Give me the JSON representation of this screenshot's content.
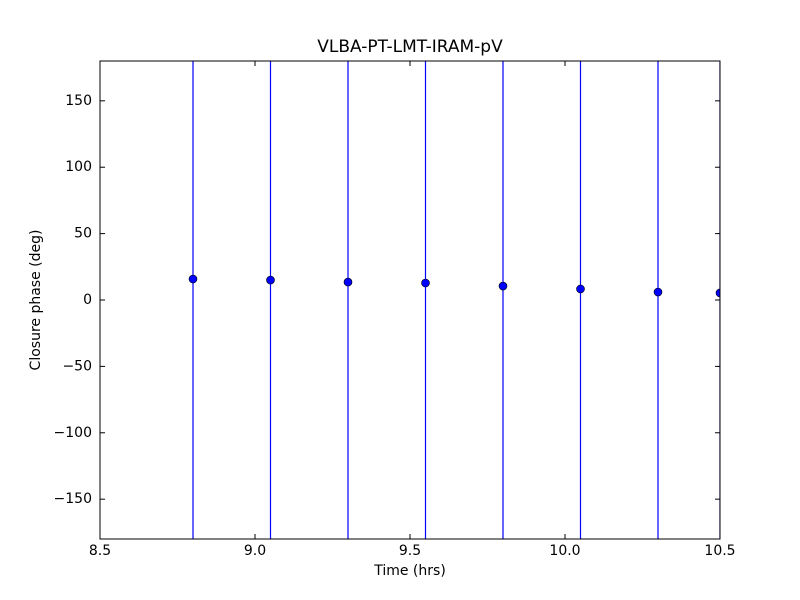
{
  "chart_data": {
    "type": "scatter",
    "title": "VLBA-PT-LMT-IRAM-pV",
    "xlabel": "Time (hrs)",
    "ylabel": "Closure phase (deg)",
    "x": [
      8.8,
      9.05,
      9.3,
      9.55,
      9.8,
      10.05,
      10.3,
      10.5
    ],
    "values": [
      15.8,
      15,
      13.5,
      12.8,
      10.5,
      8.3,
      6,
      5.3
    ],
    "errors": [
      200,
      200,
      200,
      200,
      200,
      200,
      200,
      200
    ],
    "color": "#0000ff",
    "xlim": [
      8.5,
      10.5
    ],
    "xticks": [
      8.5,
      {
        "value": 9,
        "label": "9.0"
      },
      9.5,
      {
        "value": 10,
        "label": "10.0"
      },
      10.5
    ],
    "ylim": [
      -180,
      180
    ],
    "yticks": [
      {
        "value": -150,
        "label": "−150"
      },
      {
        "value": -100,
        "label": "−100"
      },
      {
        "value": -50,
        "label": "−50"
      },
      0,
      50,
      100,
      150
    ],
    "grid": false
  }
}
